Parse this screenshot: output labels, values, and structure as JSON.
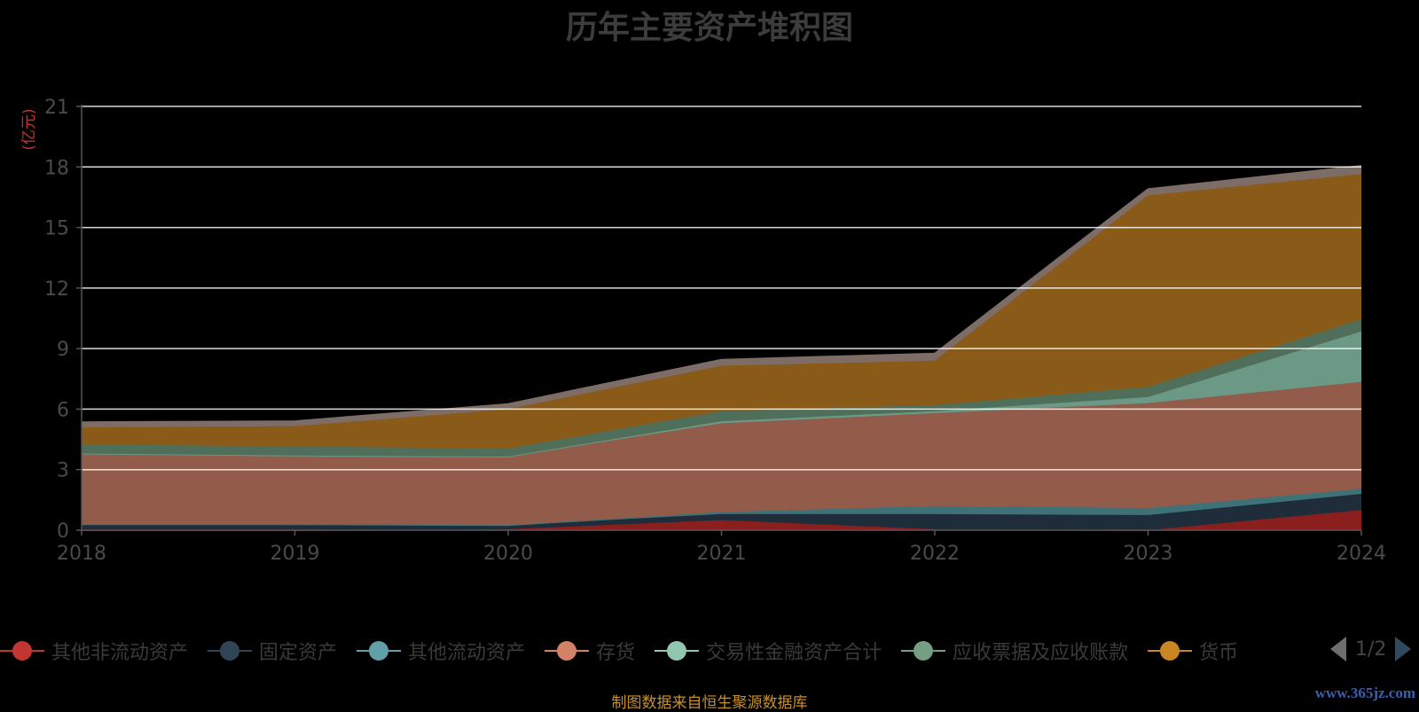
{
  "chart_data": {
    "type": "area",
    "stacked": true,
    "title": "历年主要资产堆积图",
    "ylabel": "(亿元)",
    "ylim": [
      0,
      21
    ],
    "yticks": [
      "0",
      "3",
      "6",
      "9",
      "12",
      "15",
      "18",
      "21"
    ],
    "categories": [
      "2018",
      "2019",
      "2020",
      "2021",
      "2022",
      "2023",
      "2024"
    ],
    "grid": true,
    "series": [
      {
        "name": "其他非流动资产",
        "color": "#c23531",
        "fill": "#8b1f1f",
        "values": [
          0.0,
          0.0,
          0.05,
          0.5,
          0.05,
          0.0,
          1.0
        ]
      },
      {
        "name": "固定资产",
        "color": "#2f4554",
        "fill": "#1f2d3a",
        "values": [
          0.3,
          0.3,
          0.2,
          0.3,
          0.75,
          0.75,
          0.8
        ]
      },
      {
        "name": "其他流动资产",
        "color": "#61a0a8",
        "fill": "#3f7278",
        "values": [
          0.0,
          0.0,
          0.0,
          0.1,
          0.4,
          0.35,
          0.25
        ]
      },
      {
        "name": "存货",
        "color": "#d48265",
        "fill": "#925b4a",
        "values": [
          3.5,
          3.4,
          3.4,
          4.4,
          4.6,
          5.2,
          5.3
        ]
      },
      {
        "name": "交易性金融资产合计",
        "color": "#91c7ae",
        "fill": "#6b9985",
        "values": [
          0.0,
          0.0,
          0.0,
          0.1,
          0.1,
          0.3,
          2.5
        ]
      },
      {
        "name": "应收票据及应收账款",
        "color": "#749f83",
        "fill": "#4f6f5a",
        "values": [
          0.45,
          0.45,
          0.4,
          0.5,
          0.3,
          0.5,
          0.6
        ]
      },
      {
        "name": "货币",
        "color": "#ca8622",
        "fill": "#8a5a18",
        "values": [
          0.85,
          1.0,
          1.95,
          2.25,
          2.2,
          9.5,
          7.2
        ]
      },
      {
        "name": "",
        "color": "#bda29a",
        "fill": "#7d6d66",
        "values": [
          0.25,
          0.25,
          0.25,
          0.3,
          0.35,
          0.3,
          0.4
        ]
      }
    ]
  },
  "legend": {
    "items": [
      {
        "label": "其他非流动资产",
        "color": "#c23531"
      },
      {
        "label": "固定资产",
        "color": "#2f4554"
      },
      {
        "label": "其他流动资产",
        "color": "#61a0a8"
      },
      {
        "label": "存货",
        "color": "#d48265"
      },
      {
        "label": "交易性金融资产合计",
        "color": "#91c7ae"
      },
      {
        "label": "应收票据及应收账款",
        "color": "#749f83"
      },
      {
        "label": "货币",
        "color": "#ca8622"
      }
    ],
    "page": "1/2"
  },
  "footer": {
    "source": "制图数据来自恒生聚源数据库",
    "watermark": "www.365jz.com"
  }
}
